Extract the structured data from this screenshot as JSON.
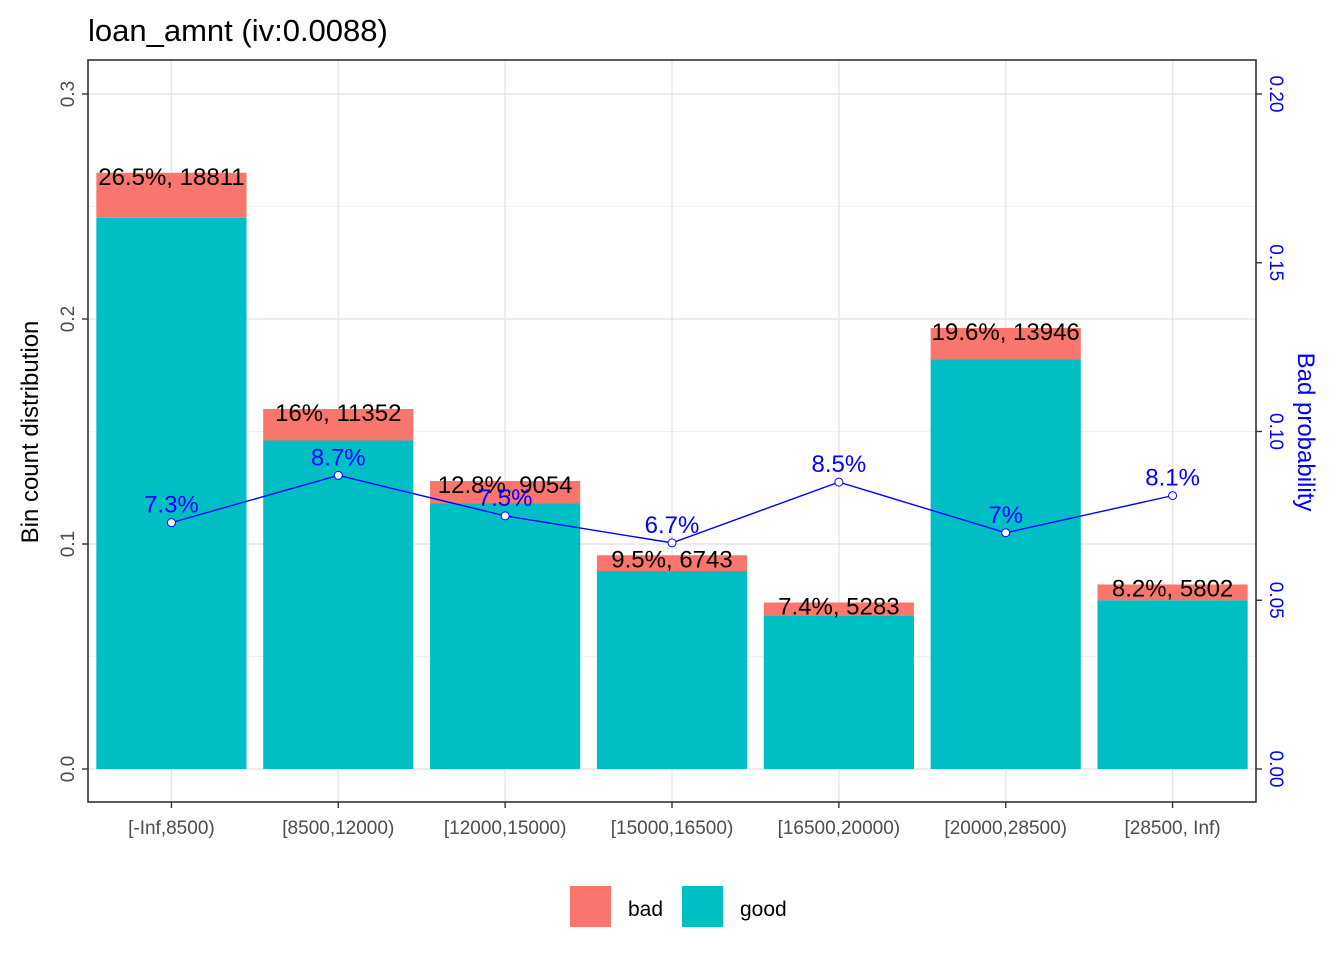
{
  "chart_data": {
    "type": "bar",
    "stacked": true,
    "title": "loan_amnt  (iv:0.0088)",
    "ylabel": "Bin count distribution",
    "ylabel_right": "Bad probability",
    "ylim": [
      0,
      0.3
    ],
    "ylim_right": [
      0,
      0.2
    ],
    "yticks": [
      0.0,
      0.1,
      0.2,
      0.3
    ],
    "ytick_labels": [
      "0.0",
      "0.1",
      "0.2",
      "0.3"
    ],
    "yticks_right": [
      0.0,
      0.05,
      0.1,
      0.15,
      0.2
    ],
    "ytick_labels_right": [
      "0.00",
      "0.05",
      "0.10",
      "0.15",
      "0.20"
    ],
    "grid": true,
    "legend_position": "bottom",
    "categories": [
      "[-Inf,8500)",
      "[8500,12000)",
      "[12000,15000)",
      "[15000,16500)",
      "[16500,20000)",
      "[20000,28500)",
      "[28500, Inf)"
    ],
    "series": [
      {
        "name": "good",
        "color": "#00BFC4",
        "values": [
          0.245,
          0.146,
          0.118,
          0.088,
          0.068,
          0.182,
          0.075
        ]
      },
      {
        "name": "bad",
        "color": "#F8766D",
        "values": [
          0.02,
          0.014,
          0.01,
          0.007,
          0.006,
          0.014,
          0.007
        ]
      }
    ],
    "bar_labels": [
      "26.5%, 18811",
      "16%, 11352",
      "12.8%, 9054",
      "9.5%, 6743",
      "7.4%, 5283",
      "19.6%, 13946",
      "8.2%, 5802"
    ],
    "bad_probability": {
      "color": "#0000FF",
      "values": [
        0.073,
        0.087,
        0.075,
        0.067,
        0.085,
        0.07,
        0.081
      ],
      "labels": [
        "7.3%",
        "8.7%",
        "7.5%",
        "6.7%",
        "8.5%",
        "7%",
        "8.1%"
      ]
    },
    "legend": [
      {
        "name": "bad",
        "color": "#F8766D"
      },
      {
        "name": "good",
        "color": "#00BFC4"
      }
    ]
  }
}
